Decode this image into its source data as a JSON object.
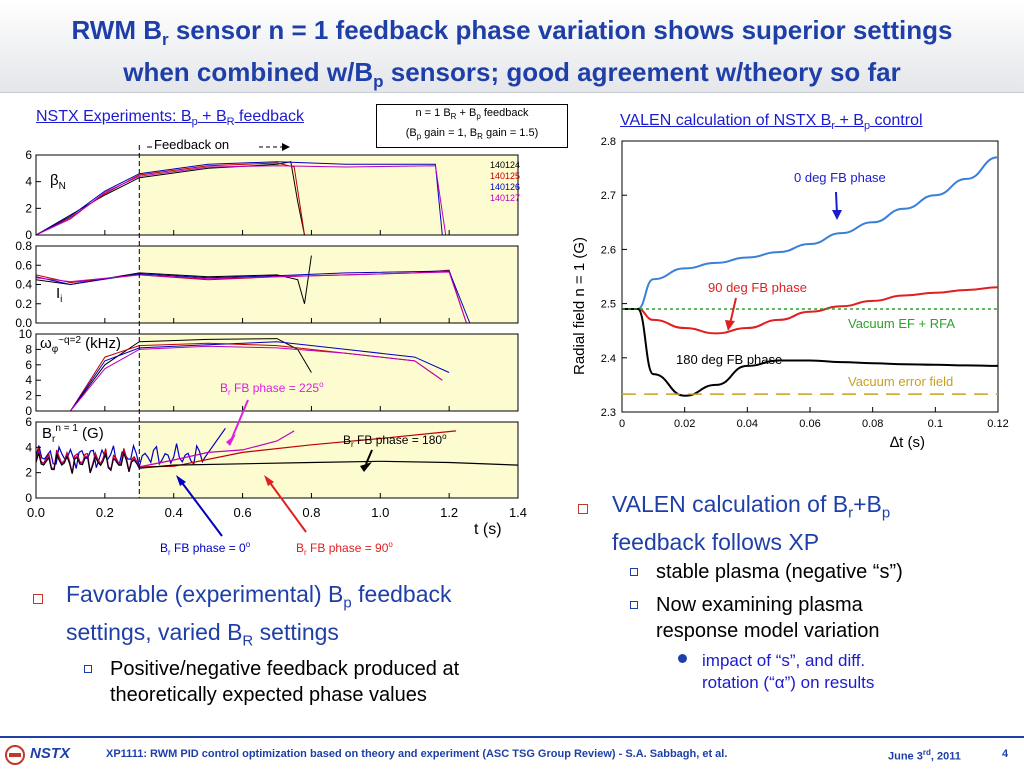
{
  "title": {
    "line1_a": "RWM B",
    "line1_sub": "r",
    "line1_b": " sensor n = 1 feedback phase variation shows superior settings",
    "line2_a": "when combined w/B",
    "line2_sub": "p",
    "line2_b": " sensors; good agreement w/theory so far"
  },
  "left_panel": {
    "caption_a": "NSTX Experiments: B",
    "caption_sub1": "p",
    "caption_b": " + B",
    "caption_sub2": "R",
    "caption_c": " feedback",
    "legend_line1_a": "n = 1 B",
    "legend_line1_sub1": "R",
    "legend_line1_b": " + B",
    "legend_line1_sub2": "p",
    "legend_line1_c": " feedback",
    "legend_line2_a": "(B",
    "legend_line2_sub1": "p",
    "legend_line2_b": " gain = 1, B",
    "legend_line2_sub2": "R",
    "legend_line2_c": " gain = 1.5)",
    "feedback_on": "Feedback on",
    "shots": [
      "140124",
      "140125",
      "140126",
      "140127"
    ],
    "shot_colors": [
      "#000000",
      "#c00000",
      "#0000c0",
      "#c000c0"
    ],
    "beta_label": "β",
    "beta_sub": "N",
    "ip_label": "I",
    "ip_sub": "i",
    "omega_label": "ω",
    "omega_sub": "φ",
    "omega_sup": "~q=2",
    "omega_unit": " (kHz)",
    "br_label": "B",
    "br_sub": "r",
    "br_sup": "n = 1",
    "br_unit": " (G)",
    "xaxis_label": "t (s)",
    "xticks": [
      "0.0",
      "0.2",
      "0.4",
      "0.6",
      "0.8",
      "1.0",
      "1.2",
      "1.4"
    ],
    "panel1_yticks": [
      "6",
      "4",
      "2",
      "0"
    ],
    "panel2_yticks": [
      "0.8",
      "0.6",
      "0.4",
      "0.2",
      "0.0"
    ],
    "panel3_yticks": [
      "10",
      "8",
      "6",
      "4",
      "2",
      "0"
    ],
    "panel4_yticks": [
      "6",
      "4",
      "2",
      "0"
    ],
    "ann_225_a": "B",
    "ann_225_sub": "r",
    "ann_225_b": " FB phase = 225",
    "ann_225_sup": "o",
    "ann_180_a": "B",
    "ann_180_sub": "r",
    "ann_180_b": " FB phase = 180",
    "ann_180_sup": "o",
    "ann_0_a": "B",
    "ann_0_sub": "r",
    "ann_0_b": " FB phase = 0",
    "ann_0_sup": "o",
    "ann_90_a": "B",
    "ann_90_sub": "r",
    "ann_90_b": " FB phase = 90",
    "ann_90_sup": "o"
  },
  "right_panel": {
    "caption_a": "VALEN calculation of NSTX B",
    "caption_sub1": "r",
    "caption_b": " + B",
    "caption_sub2": "p",
    "caption_c": " control",
    "ylabel": "Radial field n = 1 (G)",
    "xlabel": "∆t (s)",
    "xticks": [
      "0",
      "0.02",
      "0.04",
      "0.06",
      "0.08",
      "0.1",
      "0.12"
    ],
    "yticks": [
      "2.3",
      "2.4",
      "2.5",
      "2.6",
      "2.7",
      "2.8"
    ],
    "label_0deg": "0 deg FB phase",
    "label_90deg": "90 deg FB phase",
    "label_180deg": "180 deg FB phase",
    "label_vacuum_ef": "Vacuum EF + RFA",
    "label_vacuum_err": "Vacuum error field"
  },
  "chart_data": [
    {
      "type": "line",
      "title": "VALEN calculation of NSTX Br + Bp control",
      "xlabel": "∆t (s)",
      "ylabel": "Radial field n = 1 (G)",
      "xlim": [
        0,
        0.12
      ],
      "ylim": [
        2.3,
        2.8
      ],
      "grid": false,
      "x": [
        0,
        0.005,
        0.01,
        0.02,
        0.03,
        0.04,
        0.05,
        0.06,
        0.07,
        0.08,
        0.09,
        0.1,
        0.11,
        0.12
      ],
      "series": [
        {
          "name": "0 deg FB phase",
          "color": "#3a7fd9",
          "values": [
            2.49,
            2.49,
            2.545,
            2.565,
            2.575,
            2.585,
            2.595,
            2.61,
            2.63,
            2.65,
            2.675,
            2.7,
            2.73,
            2.77
          ]
        },
        {
          "name": "90 deg FB phase",
          "color": "#e02020",
          "values": [
            2.49,
            2.49,
            2.47,
            2.455,
            2.445,
            2.455,
            2.47,
            2.485,
            2.495,
            2.505,
            2.515,
            2.52,
            2.525,
            2.53
          ]
        },
        {
          "name": "180 deg FB phase",
          "color": "#000000",
          "values": [
            2.49,
            2.49,
            2.37,
            2.33,
            2.35,
            2.385,
            2.395,
            2.395,
            2.392,
            2.39,
            2.388,
            2.387,
            2.386,
            2.385
          ]
        },
        {
          "name": "Vacuum EF + RFA",
          "color": "#2ca02c",
          "dashed": true,
          "values": [
            2.49,
            2.49,
            2.49,
            2.49,
            2.49,
            2.49,
            2.49,
            2.49,
            2.49,
            2.49,
            2.49,
            2.49,
            2.49,
            2.49
          ]
        },
        {
          "name": "Vacuum error field",
          "color": "#c8a020",
          "dashed": true,
          "values": [
            2.333,
            2.333,
            2.333,
            2.333,
            2.333,
            2.333,
            2.333,
            2.333,
            2.333,
            2.333,
            2.333,
            2.333,
            2.333,
            2.333
          ]
        }
      ]
    },
    {
      "type": "line",
      "title": "NSTX Experiments: Bp + BR feedback",
      "xlabel": "t (s)",
      "xlim": [
        0,
        1.4
      ],
      "panels": [
        "βN",
        "Ii",
        "ωφ~q=2 (kHz)",
        "Br n = 1 (G)"
      ],
      "series": [
        {
          "name": "140124",
          "color": "#000000"
        },
        {
          "name": "140125",
          "color": "#c00000"
        },
        {
          "name": "140126",
          "color": "#0000c0"
        },
        {
          "name": "140127",
          "color": "#c000c0"
        }
      ]
    }
  ],
  "bullets": {
    "left1_a": "Favorable (experimental) B",
    "left1_sub1": "p",
    "left1_b": " feedback",
    "left1_c": "settings, varied B",
    "left1_sub2": "R",
    "left1_d": " settings",
    "left2_a": "Positive/negative feedback produced at",
    "left2_b": "theoretically expected phase values",
    "right1_a": "VALEN calculation of B",
    "right1_sub1": "r",
    "right1_b": "+B",
    "right1_sub2": "p",
    "right1_c": "feedback follows XP",
    "right2": "stable plasma (negative “s”)",
    "right3_a": "Now examining plasma",
    "right3_b": "response model variation",
    "right4_a": "impact of “s”, and diff.",
    "right4_b": "rotation (“α”) on results"
  },
  "footer": {
    "logo": "NSTX",
    "text": "XP1111: RWM PID control optimization based on theory and experiment (ASC TSG Group Review) - S.A. Sabbagh, et al.",
    "date_a": "June 3",
    "date_sup": "rd",
    "date_b": ", 2011",
    "page": "4"
  },
  "colors": {
    "title": "#1f3fa8",
    "link": "#1b1bcf",
    "feedback_region": "#fdfbd0"
  }
}
